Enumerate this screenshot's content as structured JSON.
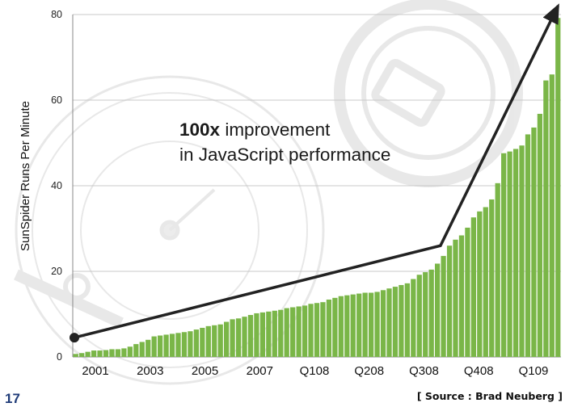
{
  "slide": {
    "number": "17",
    "source": "[ Source : Brad Neuberg ]"
  },
  "chart_data": {
    "type": "bar",
    "title": "",
    "ylabel": "SunSpider Runs Per Minute",
    "xlabel": "",
    "ylim": [
      0,
      80
    ],
    "yticks": [
      0,
      20,
      40,
      60,
      80
    ],
    "grid": true,
    "x_tick_labels": [
      "2001",
      "2003",
      "2005",
      "2007",
      "Q108",
      "Q208",
      "Q308",
      "Q408",
      "Q109"
    ],
    "bar_color": "#7ab648",
    "series": [
      {
        "values": [
          0.7,
          0.9,
          1.2,
          1.5,
          1.5,
          1.6,
          1.8,
          1.8,
          2.0,
          2.4,
          3.0,
          3.5,
          4.0,
          4.8,
          5.0,
          5.2,
          5.4,
          5.6,
          5.8,
          6.0,
          6.4,
          6.8,
          7.2,
          7.4,
          7.6,
          8.2,
          8.8,
          9.0,
          9.4,
          9.8,
          10.2,
          10.4,
          10.6,
          10.8,
          11.0,
          11.4,
          11.6,
          11.8,
          12.0,
          12.4,
          12.6,
          12.8,
          13.4,
          13.8,
          14.2,
          14.4,
          14.6,
          14.8,
          15.0,
          15.0,
          15.2,
          15.6,
          16.0,
          16.4,
          16.8,
          17.2,
          18.2,
          19.2,
          19.8,
          20.4,
          21.8,
          23.6,
          26.0,
          27.4,
          28.4,
          30.2,
          32.6,
          34.0,
          35.0,
          36.8,
          40.6,
          47.6,
          48.0,
          48.6,
          49.4,
          52.0,
          53.6,
          56.8,
          64.6,
          66.0,
          79.2
        ]
      }
    ],
    "annotation": {
      "bold": "100x",
      "line1": " improvement",
      "line2": "in JavaScript performance"
    },
    "trend_arrow": {
      "points": [
        [
          0,
          4.5
        ],
        [
          61,
          26
        ],
        [
          80.5,
          82
        ]
      ],
      "color": "#222222"
    }
  }
}
